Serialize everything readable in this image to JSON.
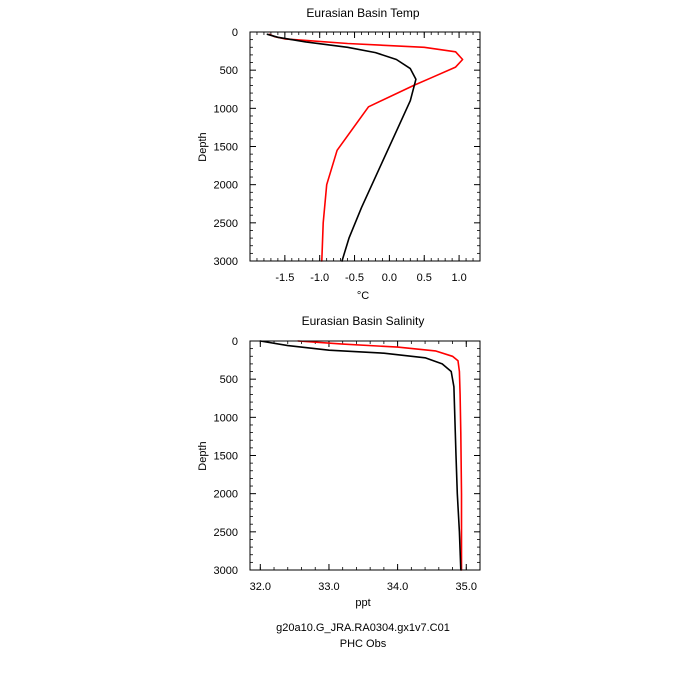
{
  "colors": {
    "model": "#000000",
    "obs": "#ff0000"
  },
  "captions": {
    "model_label": "g20a10.G_JRA.RA0304.gx1v7.C01",
    "obs_label": "PHC Obs"
  },
  "chart_data": [
    {
      "type": "line",
      "title": "Eurasian Basin Temp",
      "xlabel": "°C",
      "ylabel": "Depth",
      "xlim": [
        -2.0,
        1.3
      ],
      "ylim": [
        3000,
        0
      ],
      "xticks": [
        -1.5,
        -1.0,
        -0.5,
        0.0,
        0.5,
        1.0
      ],
      "xtick_labels": [
        "-1.5",
        "-1.0",
        "-0.5",
        "0.0",
        "0.5",
        "1.0"
      ],
      "yticks": [
        0,
        500,
        1000,
        1500,
        2000,
        2500,
        3000
      ],
      "ytick_labels": [
        "0",
        "500",
        "1000",
        "1500",
        "2000",
        "2500",
        "3000"
      ],
      "series": [
        {
          "name": "g20a10.G_JRA.RA0304.gx1v7.C01",
          "color": "#000000",
          "x": [
            -1.75,
            -1.6,
            -1.2,
            -0.6,
            -0.2,
            0.1,
            0.3,
            0.38,
            0.3,
            0.1,
            -0.15,
            -0.4,
            -0.58,
            -0.68
          ],
          "y": [
            30,
            70,
            130,
            200,
            270,
            360,
            480,
            620,
            900,
            1300,
            1800,
            2300,
            2700,
            3000
          ]
        },
        {
          "name": "PHC Obs",
          "color": "#ff0000",
          "x": [
            -1.72,
            -1.65,
            -1.5,
            -1.2,
            -0.6,
            0.5,
            0.95,
            1.05,
            0.95,
            0.6,
            0.35,
            -0.3,
            -0.75,
            -0.9,
            -0.95,
            -0.97
          ],
          "y": [
            30,
            60,
            90,
            110,
            150,
            200,
            260,
            360,
            460,
            600,
            700,
            980,
            1550,
            2000,
            2500,
            3000
          ]
        }
      ]
    },
    {
      "type": "line",
      "title": "Eurasian Basin Salinity",
      "xlabel": "ppt",
      "ylabel": "Depth",
      "xlim": [
        31.85,
        35.2
      ],
      "ylim": [
        3000,
        0
      ],
      "xticks": [
        32.0,
        33.0,
        34.0,
        35.0
      ],
      "xtick_labels": [
        "32.0",
        "33.0",
        "34.0",
        "35.0"
      ],
      "yticks": [
        0,
        500,
        1000,
        1500,
        2000,
        2500,
        3000
      ],
      "ytick_labels": [
        "0",
        "500",
        "1000",
        "1500",
        "2000",
        "2500",
        "3000"
      ],
      "series": [
        {
          "name": "g20a10.G_JRA.RA0304.gx1v7.C01",
          "color": "#000000",
          "x": [
            32.0,
            32.4,
            33.0,
            33.8,
            34.4,
            34.65,
            34.78,
            34.82,
            34.83,
            34.84,
            34.85,
            34.87,
            34.9,
            34.92
          ],
          "y": [
            0,
            60,
            120,
            160,
            220,
            300,
            400,
            600,
            900,
            1200,
            1500,
            2000,
            2500,
            3000
          ]
        },
        {
          "name": "PHC Obs",
          "color": "#ff0000",
          "x": [
            32.55,
            33.2,
            34.0,
            34.55,
            34.8,
            34.88,
            34.9,
            34.91,
            34.92,
            34.93,
            34.93
          ],
          "y": [
            0,
            40,
            80,
            130,
            200,
            260,
            400,
            700,
            1200,
            2000,
            3000
          ]
        }
      ]
    }
  ]
}
